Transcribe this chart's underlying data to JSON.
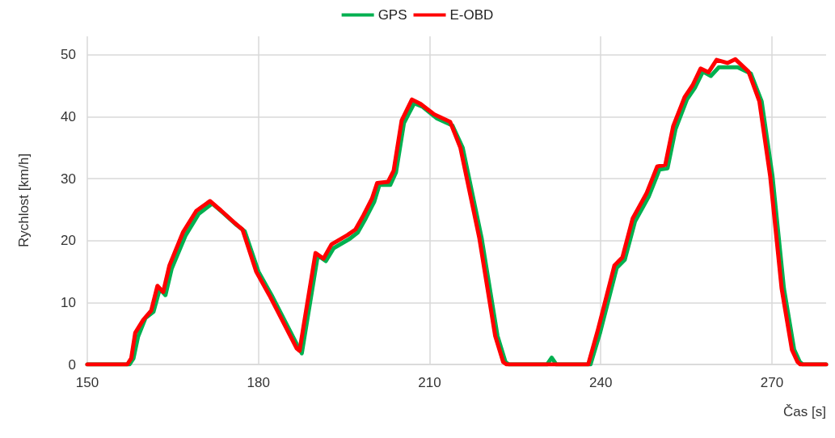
{
  "chart_data": {
    "type": "line",
    "xlabel": "Čas [s]",
    "ylabel": "Rychlost [km/h]",
    "xlim": [
      150,
      279.5
    ],
    "xticks": [
      150,
      180,
      210,
      240,
      270
    ],
    "ylim": [
      0,
      53
    ],
    "yticks": [
      0,
      10,
      20,
      30,
      40,
      50
    ],
    "grid": true,
    "legend": "top",
    "marker": "none",
    "line_style": "solid",
    "series": [
      {
        "name": "GPS",
        "color": "#00b050",
        "x": [
          150,
          157.4,
          158.1,
          158.9,
          160.2,
          161.6,
          162.7,
          163.7,
          164.8,
          167.2,
          169.5,
          171.9,
          173.8,
          176.2,
          177.6,
          180,
          182.3,
          187.1,
          187.6,
          190.4,
          191.8,
          193.2,
          196,
          197.4,
          198.8,
          200.3,
          201.2,
          203.1,
          204.1,
          205.5,
          207.3,
          208.8,
          211.2,
          214,
          215.8,
          219.1,
          221.9,
          223.3,
          223.9,
          230.6,
          231.4,
          232.2,
          238.2,
          239.9,
          242.8,
          244.2,
          246,
          248.4,
          250.3,
          251.7,
          253.1,
          255.1,
          256.5,
          257.9,
          259.3,
          260.7,
          262.6,
          264,
          266.3,
          268.2,
          270.1,
          272.1,
          273.9,
          274.9,
          275.4,
          279.5
        ],
        "values": [
          0,
          0,
          1,
          4.5,
          7.5,
          8.5,
          12.2,
          11.2,
          15.5,
          20.8,
          24.3,
          26,
          24.5,
          22.5,
          21.5,
          15,
          11.2,
          2.6,
          1.8,
          17.6,
          16.7,
          18.8,
          20.3,
          21.3,
          23.6,
          26.3,
          29,
          29,
          31,
          39,
          42.2,
          41.6,
          39.8,
          38.6,
          35,
          20.5,
          4.6,
          0.4,
          0,
          0,
          1.1,
          0,
          0,
          5.2,
          15.6,
          16.9,
          23.1,
          27.1,
          31.5,
          31.7,
          38,
          42.8,
          44.7,
          47.3,
          46.6,
          48,
          48,
          48,
          47,
          42.5,
          30.4,
          12.3,
          2.4,
          0.4,
          0,
          0
        ]
      },
      {
        "name": "E-OBD",
        "color": "#ff0000",
        "x": [
          150,
          157,
          157.7,
          158.4,
          159.8,
          161.2,
          162.3,
          163.3,
          164.4,
          166.8,
          169.1,
          171.5,
          173.4,
          175.8,
          177.2,
          179.6,
          181.9,
          186.7,
          187.2,
          190,
          191.4,
          192.8,
          195.6,
          197,
          198.4,
          199.9,
          200.8,
          202.7,
          203.7,
          205.1,
          206.9,
          208.4,
          210.8,
          213.6,
          215.4,
          218.7,
          221.5,
          222.9,
          223.5,
          237.8,
          239.5,
          242.4,
          243.8,
          245.6,
          248,
          249.9,
          251.3,
          252.7,
          254.7,
          256.1,
          257.5,
          258.9,
          260.3,
          262.2,
          263.6,
          265.9,
          267.8,
          269.7,
          271.7,
          273.5,
          274.5,
          275,
          279.5
        ],
        "values": [
          0,
          0,
          1,
          5.1,
          7.2,
          8.7,
          12.7,
          11.7,
          16,
          21.4,
          24.8,
          26.4,
          24.9,
          22.9,
          21.8,
          15,
          11.2,
          2.6,
          2.2,
          18,
          17.1,
          19.4,
          20.9,
          21.8,
          24.1,
          26.8,
          29.3,
          29.5,
          31.3,
          39.4,
          42.8,
          42.1,
          40.4,
          39.2,
          35,
          20.5,
          4.6,
          0.4,
          0,
          0,
          5.6,
          16,
          17.3,
          23.6,
          27.6,
          32,
          32.2,
          38.5,
          43.2,
          45.1,
          47.8,
          47.2,
          49.2,
          48.7,
          49.3,
          47.3,
          42.5,
          30.4,
          12.3,
          2.4,
          0.4,
          0,
          0
        ]
      }
    ]
  }
}
